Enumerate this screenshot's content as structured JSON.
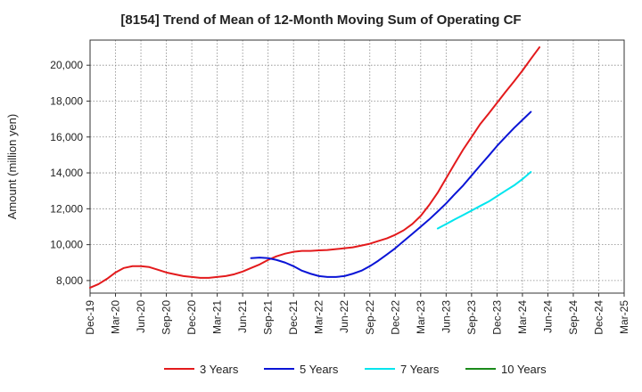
{
  "chart_data": {
    "type": "line",
    "title": "[8154]  Trend of Mean of 12-Month Moving Sum of Operating CF",
    "xlabel": "",
    "ylabel": "Amount (million yen)",
    "ylim": [
      7300,
      21400
    ],
    "yticks": [
      8000,
      10000,
      12000,
      14000,
      16000,
      18000,
      20000
    ],
    "ytick_labels": [
      "8,000",
      "10,000",
      "12,000",
      "14,000",
      "16,000",
      "18,000",
      "20,000"
    ],
    "categories": [
      "Dec-19",
      "Mar-20",
      "Jun-20",
      "Sep-20",
      "Dec-20",
      "Mar-21",
      "Jun-21",
      "Sep-21",
      "Dec-21",
      "Mar-22",
      "Jun-22",
      "Sep-22",
      "Dec-22",
      "Mar-23",
      "Jun-23",
      "Sep-23",
      "Dec-23",
      "Mar-24",
      "Jun-24",
      "Sep-24",
      "Dec-24",
      "Mar-25"
    ],
    "grid": true,
    "legend_position": "bottom",
    "series": [
      {
        "name": "3 Years",
        "color": "#e31a1c",
        "points": [
          [
            0,
            7600
          ],
          [
            0.33,
            7800
          ],
          [
            0.67,
            8100
          ],
          [
            1,
            8450
          ],
          [
            1.33,
            8700
          ],
          [
            1.67,
            8800
          ],
          [
            2,
            8800
          ],
          [
            2.33,
            8750
          ],
          [
            2.67,
            8600
          ],
          [
            3,
            8450
          ],
          [
            3.33,
            8350
          ],
          [
            3.67,
            8250
          ],
          [
            4,
            8200
          ],
          [
            4.33,
            8150
          ],
          [
            4.67,
            8150
          ],
          [
            5,
            8200
          ],
          [
            5.33,
            8250
          ],
          [
            5.67,
            8350
          ],
          [
            6,
            8500
          ],
          [
            6.33,
            8700
          ],
          [
            6.67,
            8900
          ],
          [
            7,
            9150
          ],
          [
            7.33,
            9350
          ],
          [
            7.67,
            9500
          ],
          [
            8,
            9600
          ],
          [
            8.33,
            9650
          ],
          [
            8.67,
            9650
          ],
          [
            9,
            9680
          ],
          [
            9.33,
            9700
          ],
          [
            9.67,
            9750
          ],
          [
            10,
            9800
          ],
          [
            10.33,
            9850
          ],
          [
            10.67,
            9950
          ],
          [
            11,
            10050
          ],
          [
            11.33,
            10200
          ],
          [
            11.67,
            10350
          ],
          [
            12,
            10550
          ],
          [
            12.33,
            10800
          ],
          [
            12.67,
            11150
          ],
          [
            13,
            11600
          ],
          [
            13.33,
            12200
          ],
          [
            13.67,
            12900
          ],
          [
            14,
            13700
          ],
          [
            14.33,
            14500
          ],
          [
            14.67,
            15300
          ],
          [
            15,
            16000
          ],
          [
            15.33,
            16700
          ],
          [
            15.67,
            17300
          ],
          [
            16,
            17900
          ],
          [
            16.33,
            18500
          ],
          [
            16.67,
            19100
          ],
          [
            17,
            19700
          ],
          [
            17.33,
            20350
          ],
          [
            17.67,
            21000
          ]
        ]
      },
      {
        "name": "5 Years",
        "color": "#0a14d6",
        "points": [
          [
            6.33,
            9250
          ],
          [
            6.67,
            9280
          ],
          [
            7,
            9250
          ],
          [
            7.33,
            9150
          ],
          [
            7.67,
            9000
          ],
          [
            8,
            8800
          ],
          [
            8.33,
            8550
          ],
          [
            8.67,
            8380
          ],
          [
            9,
            8250
          ],
          [
            9.33,
            8200
          ],
          [
            9.67,
            8200
          ],
          [
            10,
            8250
          ],
          [
            10.33,
            8380
          ],
          [
            10.67,
            8550
          ],
          [
            11,
            8800
          ],
          [
            11.33,
            9100
          ],
          [
            11.67,
            9450
          ],
          [
            12,
            9800
          ],
          [
            12.33,
            10200
          ],
          [
            12.67,
            10600
          ],
          [
            13,
            11000
          ],
          [
            13.33,
            11400
          ],
          [
            13.67,
            11850
          ],
          [
            14,
            12300
          ],
          [
            14.33,
            12800
          ],
          [
            14.67,
            13300
          ],
          [
            15,
            13850
          ],
          [
            15.33,
            14400
          ],
          [
            15.67,
            14950
          ],
          [
            16,
            15500
          ],
          [
            16.33,
            16000
          ],
          [
            16.67,
            16500
          ],
          [
            17,
            16950
          ],
          [
            17.33,
            17400
          ]
        ]
      },
      {
        "name": "7 Years",
        "color": "#00e5ee",
        "points": [
          [
            13.67,
            10900
          ],
          [
            14,
            11150
          ],
          [
            14.33,
            11400
          ],
          [
            14.67,
            11650
          ],
          [
            15,
            11900
          ],
          [
            15.33,
            12150
          ],
          [
            15.67,
            12400
          ],
          [
            16,
            12700
          ],
          [
            16.33,
            13000
          ],
          [
            16.67,
            13300
          ],
          [
            17,
            13650
          ],
          [
            17.33,
            14050
          ]
        ]
      },
      {
        "name": "10 Years",
        "color": "#1a8a1a",
        "points": []
      }
    ]
  }
}
